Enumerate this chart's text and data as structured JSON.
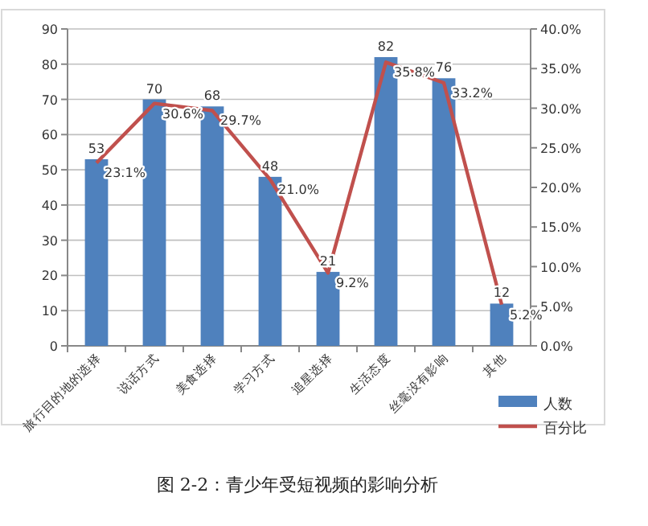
{
  "chart_data": {
    "type": "bar",
    "categories": [
      "旅行目的地的选择",
      "说话方式",
      "美食选择",
      "学习方式",
      "追星选择",
      "生活态度",
      "丝毫没有影响",
      "其他"
    ],
    "series": [
      {
        "name": "人数",
        "color": "#4f81bd",
        "values": [
          53,
          70,
          68,
          48,
          21,
          82,
          76,
          12
        ]
      },
      {
        "name": "百分比",
        "type": "line",
        "axis": "y2",
        "color": "#c0504d",
        "values": [
          23.1,
          30.6,
          29.7,
          21.0,
          9.2,
          35.8,
          33.2,
          5.2
        ],
        "value_labels": [
          "23.1%",
          "30.6%",
          "29.7%",
          "21.0%",
          "9.2%",
          "35.8%",
          "33.2%",
          "5.2%"
        ]
      }
    ],
    "data_labels": true,
    "ylim": [
      0,
      90
    ],
    "yticks": [
      0,
      10,
      20,
      30,
      40,
      50,
      60,
      70,
      80,
      90
    ],
    "y2lim": [
      0,
      40
    ],
    "y2ticks": [
      {
        "value": 0,
        "label": "0.0%"
      },
      {
        "value": 5,
        "label": "5.0%"
      },
      {
        "value": 10,
        "label": "10.0%"
      },
      {
        "value": 15,
        "label": "15.0%"
      },
      {
        "value": 20,
        "label": "20.0%"
      },
      {
        "value": 25,
        "label": "25.0%"
      },
      {
        "value": 30,
        "label": "30.0%"
      },
      {
        "value": 35,
        "label": "35.0%"
      },
      {
        "value": 40,
        "label": "40.0%"
      }
    ],
    "grid": "y",
    "legend": "right",
    "annotations": [
      "图 2-2：青少年受短视频的影响分析"
    ]
  }
}
